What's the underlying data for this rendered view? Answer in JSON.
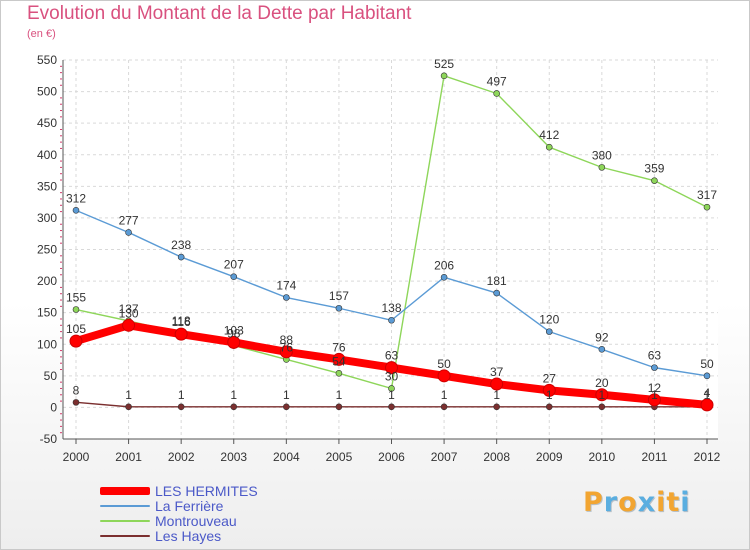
{
  "title": "Evolution du Montant de la Dette par Habitant",
  "subtitle": "(en €)",
  "brand": {
    "letters": [
      "P",
      "r",
      "o",
      "x",
      "i",
      "t",
      "i"
    ],
    "colors": [
      "#f2a531",
      "#5aaee0",
      "#f2a531",
      "#5aaee0",
      "#f2a531",
      "#f2a531",
      "#5aaee0"
    ]
  },
  "chart_data": {
    "type": "line",
    "x": [
      "2000",
      "2001",
      "2002",
      "2003",
      "2004",
      "2005",
      "2006",
      "2007",
      "2008",
      "2009",
      "2010",
      "2011",
      "2012"
    ],
    "ylim": [
      -50,
      550
    ],
    "yticks": [
      "-50",
      "0",
      "50",
      "100",
      "150",
      "200",
      "250",
      "300",
      "350",
      "400",
      "450",
      "500",
      "550"
    ],
    "grid": true,
    "legend_position": "bottom-left",
    "series": [
      {
        "name": "LES HERMITES",
        "color": "#ff0000",
        "values": [
          105,
          130,
          116,
          103,
          88,
          76,
          63,
          50,
          37,
          27,
          20,
          12,
          4
        ],
        "labels": [
          "105",
          "130",
          "116",
          "103",
          "88",
          "76",
          "63",
          "50",
          "37",
          "27",
          "20",
          "12",
          "4"
        ]
      },
      {
        "name": "La Ferrière",
        "color": "#5b9bd5",
        "values": [
          312,
          277,
          238,
          207,
          174,
          157,
          138,
          206,
          181,
          120,
          92,
          63,
          50
        ],
        "labels": [
          "312",
          "277",
          "238",
          "207",
          "174",
          "157",
          "138",
          "206",
          "181",
          "120",
          "92",
          "63",
          "50"
        ]
      },
      {
        "name": "Montrouveau",
        "color": "#8ed65a",
        "values": [
          155,
          137,
          118,
          98,
          76,
          54,
          30,
          525,
          497,
          412,
          380,
          359,
          317
        ],
        "labels": [
          "155",
          "137",
          "118",
          "98",
          "76",
          "54",
          "30",
          "525",
          "497",
          "412",
          "380",
          "359",
          "317"
        ]
      },
      {
        "name": "Les Hayes",
        "color": "#7b2f2f",
        "values": [
          8,
          1,
          1,
          1,
          1,
          1,
          1,
          1,
          1,
          1,
          1,
          1,
          1
        ],
        "labels": [
          "8",
          "1",
          "1",
          "1",
          "1",
          "1",
          "1",
          "1",
          "1",
          "1",
          "1",
          "1",
          "1"
        ]
      }
    ]
  }
}
